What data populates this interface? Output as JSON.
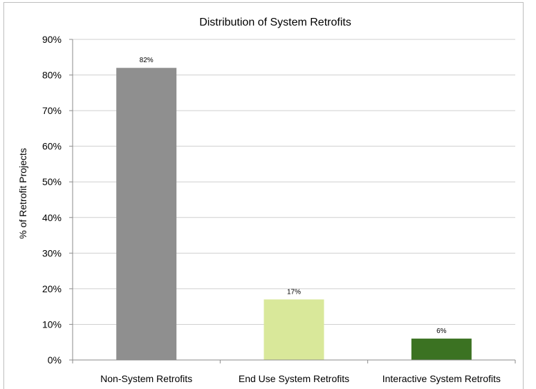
{
  "chart_data": {
    "type": "bar",
    "title": "Distribution of System Retrofits",
    "xlabel": "",
    "ylabel": "% of Retrofit Projects",
    "categories": [
      "Non-System Retrofits",
      "End Use System Retrofits",
      "Interactive System Retrofits"
    ],
    "values": [
      82,
      17,
      6
    ],
    "data_labels": [
      "82%",
      "17%",
      "6%"
    ],
    "bar_colors": [
      "#8f8f8f",
      "#d9e89a",
      "#3b7222"
    ],
    "ylim": [
      0,
      90
    ],
    "yticks": [
      0,
      10,
      20,
      30,
      40,
      50,
      60,
      70,
      80,
      90
    ],
    "ytick_labels": [
      "0%",
      "10%",
      "20%",
      "30%",
      "40%",
      "50%",
      "60%",
      "70%",
      "80%",
      "90%"
    ],
    "grid": true,
    "legend": "none"
  }
}
